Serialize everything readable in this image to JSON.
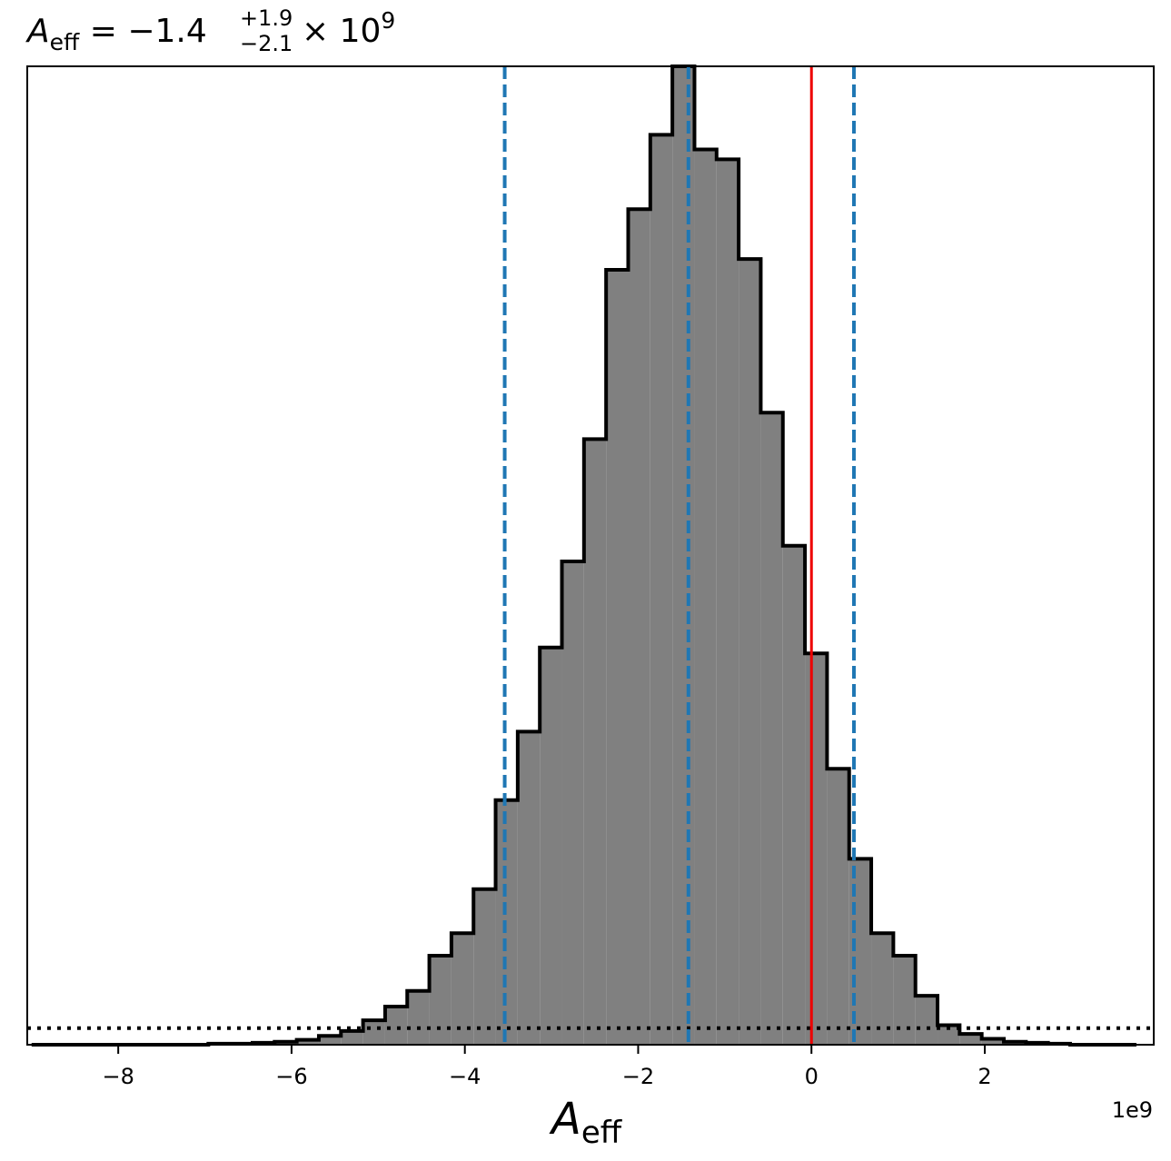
{
  "chart_data": {
    "type": "histogram",
    "title": {
      "symbol": "A",
      "symbol_sub": "eff",
      "equals": " = ",
      "median": "−1.4",
      "upper_err": "+1.9",
      "lower_err": "−2.1",
      "times": " × 10",
      "exponent": "9"
    },
    "xlabel": {
      "symbol": "A",
      "sub": "eff"
    },
    "offset_text": "1e9",
    "xlim": [
      -9.05,
      3.95
    ],
    "ylim": [
      0,
      1.0
    ],
    "xticks": [
      {
        "value": -8,
        "label": "−8"
      },
      {
        "value": -6,
        "label": "−6"
      },
      {
        "value": -4,
        "label": "−4"
      },
      {
        "value": -2,
        "label": "−2"
      },
      {
        "value": 0,
        "label": "0"
      },
      {
        "value": 2,
        "label": "2"
      }
    ],
    "bin_edges": [
      -9.0,
      -8.745,
      -8.49,
      -8.235,
      -7.98,
      -7.725,
      -7.47,
      -7.215,
      -6.96,
      -6.705,
      -6.45,
      -6.195,
      -5.94,
      -5.685,
      -5.43,
      -5.175,
      -4.92,
      -4.665,
      -4.41,
      -4.155,
      -3.9,
      -3.645,
      -3.39,
      -3.135,
      -2.88,
      -2.625,
      -2.37,
      -2.115,
      -1.86,
      -1.605,
      -1.35,
      -1.095,
      -0.84,
      -0.585,
      -0.33,
      -0.075,
      0.18,
      0.435,
      0.69,
      0.945,
      1.2,
      1.455,
      1.71,
      1.965,
      2.22,
      2.475,
      2.73,
      2.985,
      3.24,
      3.495,
      3.75
    ],
    "counts": [
      0.0,
      0.0,
      0.0,
      0.0,
      0.0,
      0.0,
      0.0,
      0.0,
      0.001,
      0.001,
      0.002,
      0.003,
      0.005,
      0.009,
      0.014,
      0.025,
      0.039,
      0.055,
      0.091,
      0.114,
      0.159,
      0.25,
      0.32,
      0.406,
      0.494,
      0.619,
      0.792,
      0.854,
      0.93,
      1.0,
      0.915,
      0.905,
      0.803,
      0.646,
      0.51,
      0.4,
      0.282,
      0.19,
      0.114,
      0.091,
      0.05,
      0.02,
      0.011,
      0.006,
      0.003,
      0.002,
      0.001,
      0.0,
      0.0,
      0.0
    ],
    "prior_level": 0.017,
    "median_line": -1.42,
    "ci_lines": [
      -3.54,
      0.49
    ],
    "truth_line": 0.0,
    "colors": {
      "fill": "#808080",
      "edge": "#000000",
      "ci": "#1f77b4",
      "truth": "#ee0000",
      "prior": "#000000"
    }
  }
}
